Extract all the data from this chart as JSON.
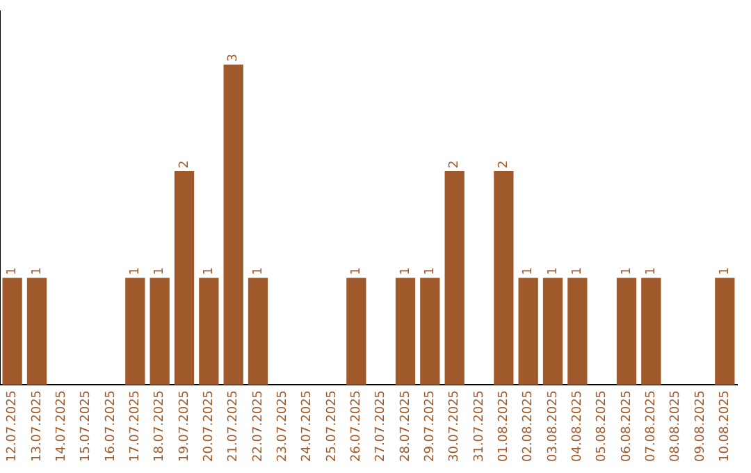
{
  "chart_data": {
    "type": "bar",
    "categories": [
      "12.07.2025",
      "13.07.2025",
      "14.07.2025",
      "15.07.2025",
      "16.07.2025",
      "17.07.2025",
      "18.07.2025",
      "19.07.2025",
      "20.07.2025",
      "21.07.2025",
      "22.07.2025",
      "23.07.2025",
      "24.07.2025",
      "25.07.2025",
      "26.07.2025",
      "27.07.2025",
      "28.07.2025",
      "29.07.2025",
      "30.07.2025",
      "31.07.2025",
      "01.08.2025",
      "02.08.2025",
      "03.08.2025",
      "04.08.2025",
      "05.08.2025",
      "06.08.2025",
      "07.08.2025",
      "08.08.2025",
      "09.08.2025",
      "10.08.2025"
    ],
    "values": [
      1,
      1,
      null,
      null,
      null,
      1,
      1,
      2,
      1,
      3,
      1,
      null,
      null,
      null,
      1,
      null,
      1,
      1,
      2,
      null,
      2,
      1,
      1,
      1,
      null,
      1,
      1,
      null,
      null,
      1
    ],
    "color": "#a0592a",
    "data_labels": true,
    "grid": false,
    "legend": false
  }
}
